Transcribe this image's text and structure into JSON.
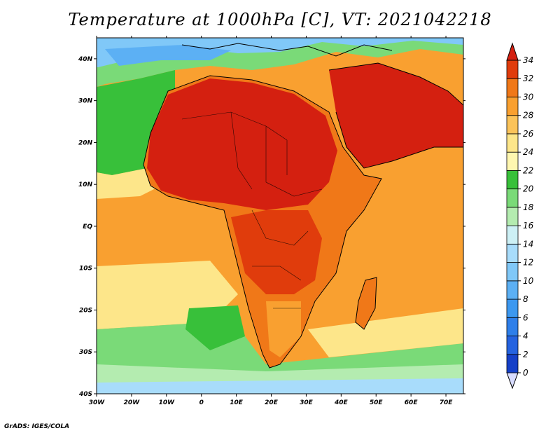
{
  "title": "Temperature at 1000hPa [C], VT: 2021042218",
  "credit": "GrADS: IGES/COLA",
  "map": {
    "lon_range": [
      -30,
      75
    ],
    "lat_range": [
      -40,
      45
    ],
    "lon_ticks": [
      "30W",
      "20W",
      "10W",
      "0",
      "10E",
      "20E",
      "30E",
      "40E",
      "50E",
      "60E",
      "70E"
    ],
    "lat_ticks": [
      "40N",
      "30N",
      "20N",
      "10N",
      "EQ",
      "10S",
      "20S",
      "30S",
      "40S"
    ]
  },
  "colorbar": {
    "labels": [
      "0",
      "2",
      "4",
      "6",
      "8",
      "10",
      "12",
      "14",
      "16",
      "18",
      "20",
      "22",
      "24",
      "26",
      "28",
      "30",
      "32",
      "34"
    ],
    "colors": [
      "#0a1f8a",
      "#1540c8",
      "#2563e0",
      "#2e7fea",
      "#3c98f0",
      "#5cb0f4",
      "#80c8f8",
      "#a8dcfb",
      "#cdf0f5",
      "#b4ecb0",
      "#7ada78",
      "#38c03a",
      "#fff7b0",
      "#fde68a",
      "#fbc35a",
      "#f9a030",
      "#f07818",
      "#e03c0c",
      "#d42010"
    ]
  }
}
